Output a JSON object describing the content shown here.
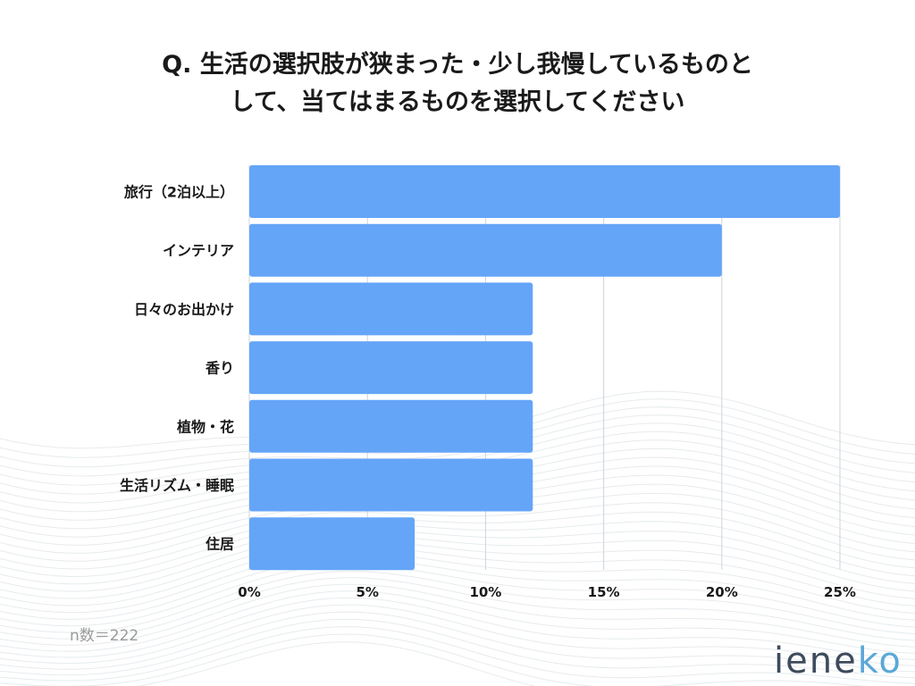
{
  "title": {
    "line1": "Q. 生活の選択肢が狭まった・少し我慢しているものと",
    "line2": "して、当てはまるものを選択してください"
  },
  "chart_data": {
    "type": "bar",
    "orientation": "horizontal",
    "categories": [
      "旅行（2泊以上）",
      "インテリア",
      "日々のお出かけ",
      "香り",
      "植物・花",
      "生活リズム・睡眠",
      "住居"
    ],
    "values": [
      25,
      20,
      12,
      12,
      12,
      12,
      7
    ],
    "xlim": [
      0,
      25
    ],
    "xticks": [
      0,
      5,
      10,
      15,
      20,
      25
    ],
    "xtick_labels": [
      "0%",
      "5%",
      "10%",
      "15%",
      "20%",
      "25%"
    ],
    "grid": "vertical",
    "bar_color": "#64a5f8"
  },
  "sample_size": "n数＝222",
  "logo": {
    "text_main": "iene",
    "text_accent": "ko"
  }
}
